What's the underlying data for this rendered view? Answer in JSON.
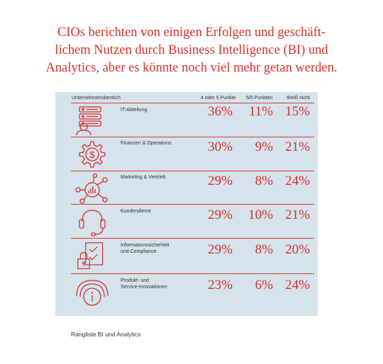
{
  "title_lines": [
    "CIOs berichten von einigen Erfolgen und geschäft-",
    "lichem Nutzen durch Business Intelligence (BI) und",
    "Analytics, aber es könnte noch viel mehr getan werden."
  ],
  "table": {
    "headers": {
      "area": "Unternehmensbereich",
      "col1": "4 oder 5 Punkte",
      "col2": "5/5 Punkten",
      "col3": "Weiß nicht"
    },
    "rows": [
      {
        "label": [
          "IT-Abteilung"
        ],
        "icon": "server-user-icon",
        "v1": "36%",
        "v2": "11%",
        "v3": "15%"
      },
      {
        "label": [
          "Finanzen & Operations"
        ],
        "icon": "gear-dollar-icon",
        "v1": "30%",
        "v2": "9%",
        "v3": "21%"
      },
      {
        "label": [
          "Marketing & Vertrieb"
        ],
        "icon": "network-chart-icon",
        "v1": "29%",
        "v2": "8%",
        "v3": "24%"
      },
      {
        "label": [
          "Kundendienst"
        ],
        "icon": "headset-icon",
        "v1": "29%",
        "v2": "10%",
        "v3": "21%"
      },
      {
        "label": [
          "Informationssicherheit",
          "und Compliance"
        ],
        "icon": "lock-document-icon",
        "v1": "29%",
        "v2": "8%",
        "v3": "20%"
      },
      {
        "label": [
          "Produkt- und",
          "Service-Innovationen"
        ],
        "icon": "innovation-signal-icon",
        "v1": "23%",
        "v2": "6%",
        "v3": "24%"
      }
    ]
  },
  "footnote": "Rangliste BI und Analytics",
  "colors": {
    "accent": "#d9302a",
    "panel": "#d4e3ec",
    "text": "#333333"
  }
}
